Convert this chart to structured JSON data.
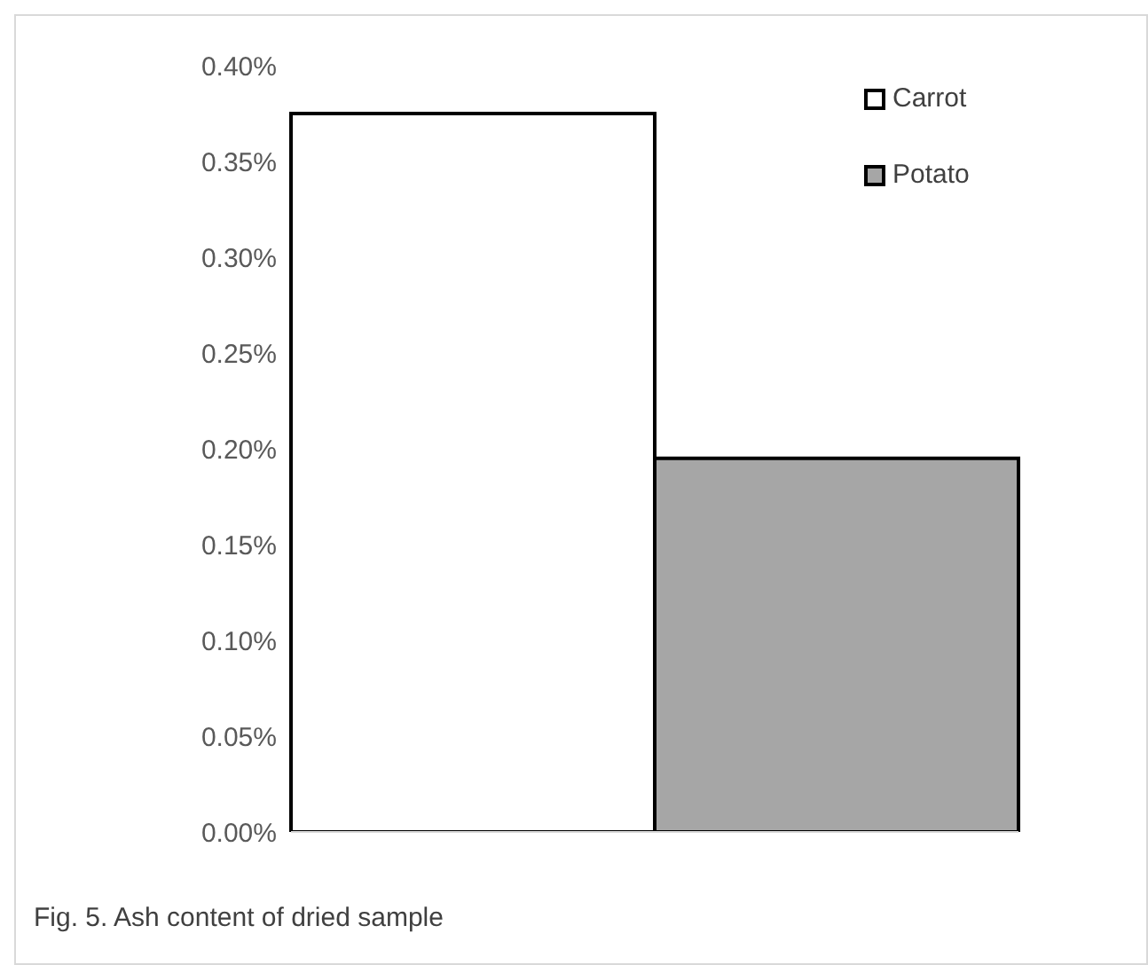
{
  "chart_data": {
    "type": "bar",
    "categories": [
      null
    ],
    "series": [
      {
        "name": "Carrot",
        "color": "#ffffff",
        "values": [
          0.375
        ]
      },
      {
        "name": "Potato",
        "color": "#a6a6a6",
        "values": [
          0.195
        ]
      }
    ],
    "ylim": [
      0,
      0.4
    ],
    "yticks": [
      {
        "value": 0,
        "label": "0.00%"
      },
      {
        "value": 0.05,
        "label": "0.05%"
      },
      {
        "value": 0.1,
        "label": "0.10%"
      },
      {
        "value": 0.15,
        "label": "0.15%"
      },
      {
        "value": 0.2,
        "label": "0.20%"
      },
      {
        "value": 0.25,
        "label": "0.25%"
      },
      {
        "value": 0.3,
        "label": "0.30%"
      },
      {
        "value": 0.35,
        "label": "0.35%"
      },
      {
        "value": 0.4,
        "label": "0.40%"
      }
    ],
    "grid": false,
    "legend": "top right",
    "tick_labels": "y",
    "annotations": [
      "Fig. 5. Ash content of dried sample"
    ]
  }
}
